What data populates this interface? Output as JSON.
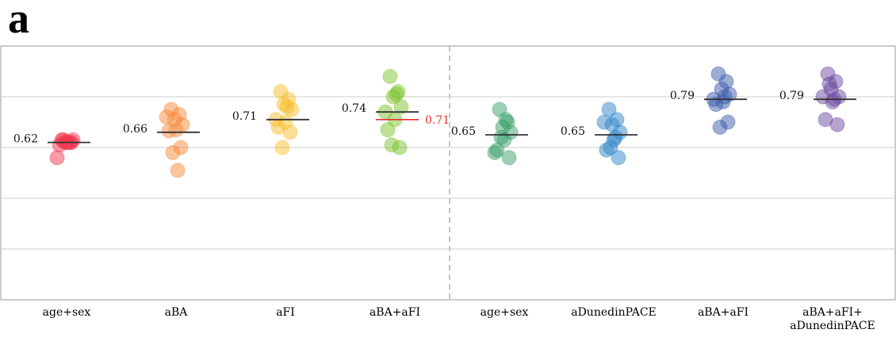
{
  "panel_label": "a",
  "chart_data": {
    "type": "strip",
    "categories": [
      "age+sex",
      "aBA",
      "aFI",
      "aBA+aFI",
      "age+sex",
      "aDunedinPACE",
      "aBA+aFI",
      "aBA+aFI+ aDunedinPACE"
    ],
    "colors": [
      "#f2384f",
      "#f68a3c",
      "#f7c02e",
      "#7ec42f",
      "#3c9f6b",
      "#2f86c8",
      "#3b5ca9",
      "#6b4b9f"
    ],
    "values": [
      [
        0.63,
        0.62,
        0.62,
        0.63,
        0.62,
        0.61,
        0.62,
        0.63,
        0.62,
        0.56
      ],
      [
        0.75,
        0.73,
        0.71,
        0.69,
        0.67,
        0.665,
        0.6,
        0.58,
        0.51,
        0.72
      ],
      [
        0.82,
        0.79,
        0.77,
        0.75,
        0.7,
        0.68,
        0.66,
        0.6,
        0.76,
        0.71
      ],
      [
        0.88,
        0.82,
        0.8,
        0.76,
        0.71,
        0.67,
        0.6,
        0.61,
        0.81,
        0.74
      ],
      [
        0.75,
        0.7,
        0.68,
        0.66,
        0.63,
        0.59,
        0.56,
        0.64,
        0.71,
        0.58
      ],
      [
        0.75,
        0.71,
        0.69,
        0.66,
        0.63,
        0.59,
        0.56,
        0.6,
        0.64,
        0.7
      ],
      [
        0.89,
        0.86,
        0.83,
        0.81,
        0.78,
        0.77,
        0.7,
        0.68,
        0.8,
        0.79
      ],
      [
        0.89,
        0.86,
        0.83,
        0.8,
        0.78,
        0.71,
        0.69,
        0.85,
        0.79,
        0.8
      ]
    ],
    "means": [
      0.62,
      0.66,
      0.71,
      0.74,
      0.65,
      0.65,
      0.79,
      0.79
    ],
    "reference_values": [
      null,
      null,
      null,
      0.71,
      null,
      null,
      null,
      null
    ],
    "reference_color": "#e8312c",
    "ylim": [
      0,
      1
    ],
    "yticks": [
      0.2,
      0.4,
      0.6,
      0.8
    ],
    "grid": true
  }
}
